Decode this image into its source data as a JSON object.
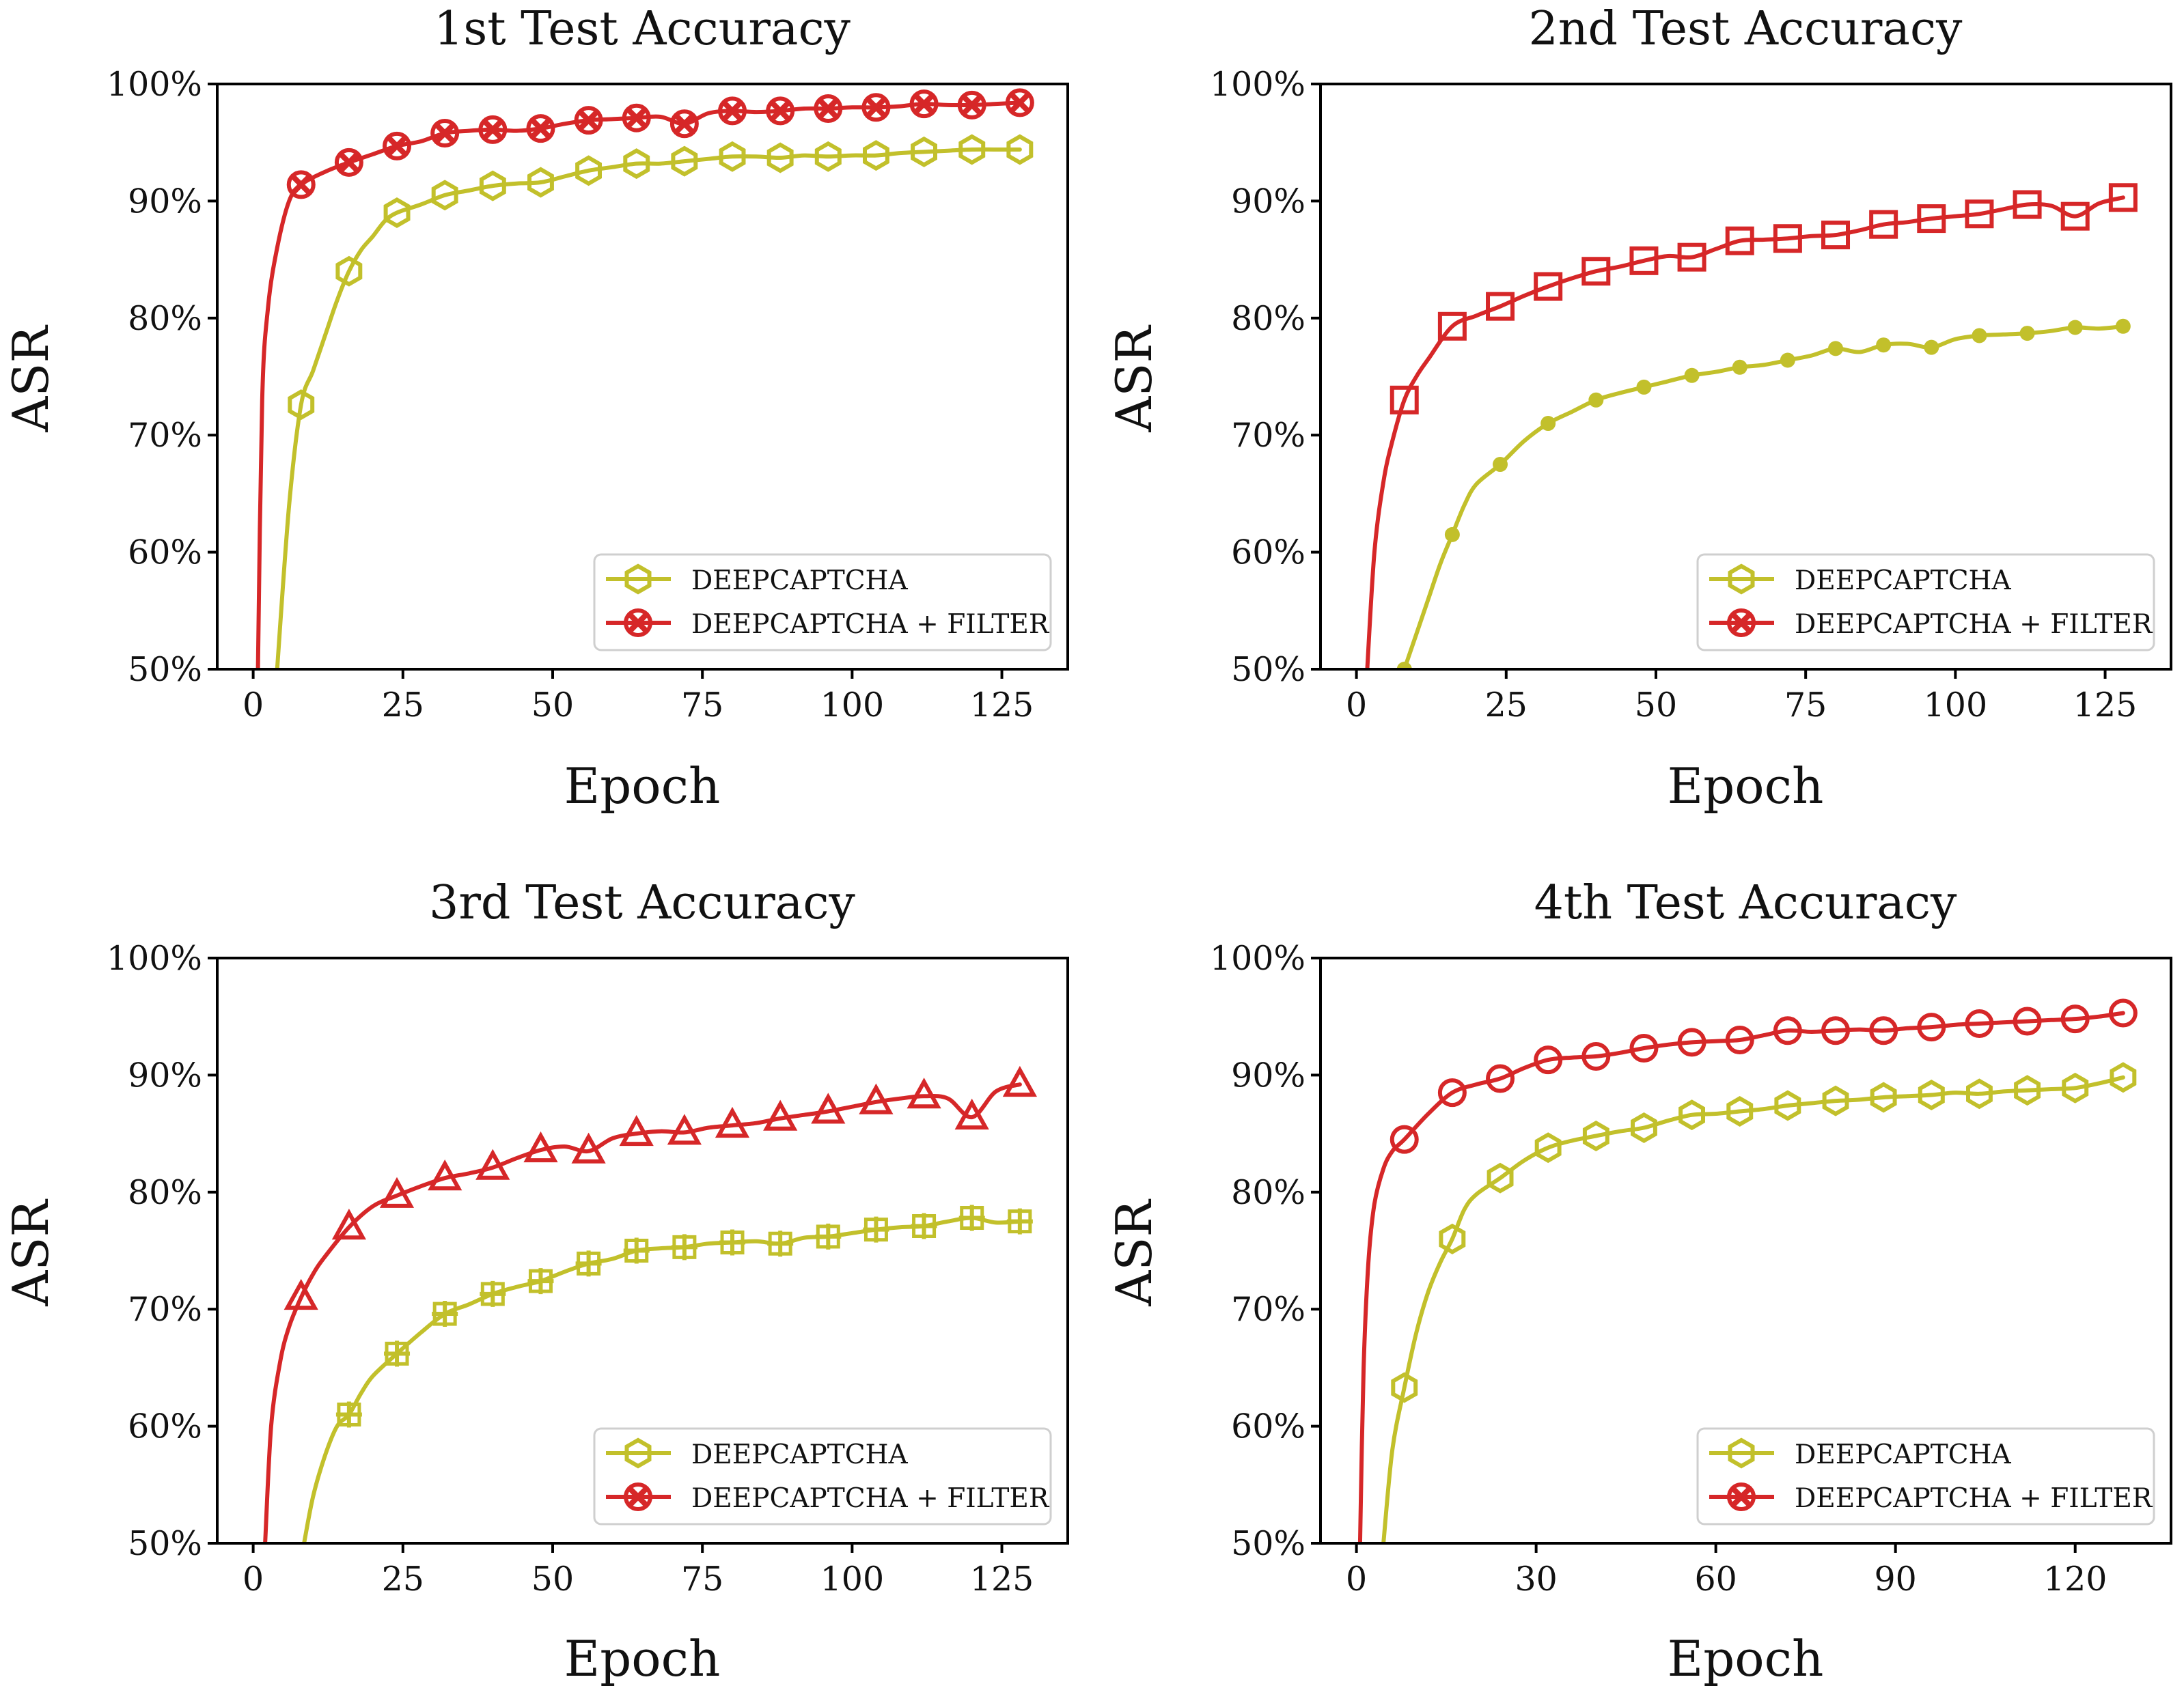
{
  "colors": {
    "baseline": "#c2c02b",
    "filter": "#d62728"
  },
  "chart_data": [
    {
      "type": "line",
      "title": "1st Test Accuracy",
      "xlabel": "Epoch",
      "ylabel": "ASR",
      "xlim": [
        -6,
        136
      ],
      "ylim": [
        50,
        100
      ],
      "xticks": [
        0,
        25,
        50,
        75,
        100,
        125
      ],
      "yticks": [
        50,
        60,
        70,
        80,
        90,
        100
      ],
      "ytick_labels": [
        "50%",
        "60%",
        "70%",
        "80%",
        "90%",
        "100%"
      ],
      "legend_position": "lower-right",
      "series": [
        {
          "name": "DEEPCAPTCHA",
          "color": "baseline",
          "marker": "hexagon",
          "x": [
            4,
            6,
            8,
            10,
            12,
            14,
            16,
            18,
            20,
            22,
            24,
            28,
            32,
            36,
            40,
            44,
            48,
            52,
            56,
            60,
            64,
            68,
            72,
            76,
            80,
            84,
            88,
            92,
            96,
            100,
            104,
            108,
            112,
            116,
            120,
            124,
            128
          ],
          "y": [
            50,
            64,
            72.6,
            75.5,
            78.5,
            81.5,
            84,
            85.8,
            87,
            88.3,
            89,
            89.7,
            90.5,
            90.9,
            91.3,
            91.5,
            91.6,
            92.1,
            92.6,
            92.9,
            93.2,
            93.2,
            93.4,
            93.6,
            93.8,
            93.8,
            93.7,
            93.9,
            93.8,
            93.9,
            93.9,
            94.1,
            94.2,
            94.3,
            94.4,
            94.4,
            94.4
          ],
          "marker_x": [
            8,
            16,
            24,
            32,
            40,
            48,
            56,
            64,
            72,
            80,
            88,
            96,
            104,
            112,
            120,
            128
          ]
        },
        {
          "name": "DEEPCAPTCHA + FILTER",
          "color": "filter",
          "marker": "x-circle",
          "x": [
            0.8,
            1.5,
            2.5,
            4,
            6,
            8,
            12,
            16,
            20,
            24,
            28,
            32,
            36,
            40,
            44,
            48,
            52,
            56,
            60,
            64,
            68,
            72,
            76,
            80,
            84,
            88,
            92,
            96,
            100,
            104,
            108,
            112,
            116,
            120,
            124,
            128
          ],
          "y": [
            50,
            73,
            81,
            86,
            90,
            91.4,
            92.5,
            93.3,
            94,
            94.7,
            95.1,
            95.8,
            96,
            96.1,
            96,
            96.2,
            96.6,
            96.9,
            97,
            97.1,
            97.2,
            96.6,
            97.5,
            97.7,
            97.6,
            97.7,
            97.9,
            97.9,
            98,
            98,
            98.1,
            98.3,
            98.2,
            98.2,
            98.3,
            98.4
          ],
          "marker_x": [
            8,
            16,
            24,
            32,
            40,
            48,
            56,
            64,
            72,
            80,
            88,
            96,
            104,
            112,
            120,
            128
          ]
        }
      ]
    },
    {
      "type": "line",
      "title": "2nd Test Accuracy",
      "xlabel": "Epoch",
      "ylabel": "ASR",
      "xlim": [
        -6,
        136
      ],
      "ylim": [
        50,
        100
      ],
      "xticks": [
        0,
        25,
        50,
        75,
        100,
        125
      ],
      "yticks": [
        50,
        60,
        70,
        80,
        90,
        100
      ],
      "ytick_labels": [
        "50%",
        "60%",
        "70%",
        "80%",
        "90%",
        "100%"
      ],
      "legend_position": "lower-right",
      "series": [
        {
          "name": "DEEPCAPTCHA",
          "color": "baseline",
          "marker": "dot",
          "x": [
            8,
            10,
            12,
            14,
            16,
            18,
            20,
            24,
            28,
            32,
            36,
            40,
            44,
            48,
            52,
            56,
            60,
            64,
            68,
            72,
            76,
            80,
            84,
            88,
            92,
            96,
            100,
            104,
            108,
            112,
            116,
            120,
            124,
            128
          ],
          "y": [
            50,
            53,
            56,
            59,
            61.5,
            64,
            65.8,
            67.5,
            69.5,
            71,
            72,
            73,
            73.6,
            74.1,
            74.6,
            75.1,
            75.4,
            75.8,
            76,
            76.4,
            76.8,
            77.4,
            77.1,
            77.7,
            77.8,
            77.5,
            78.2,
            78.5,
            78.6,
            78.7,
            78.9,
            79.2,
            79.1,
            79.3
          ],
          "marker_x": [
            8,
            16,
            24,
            32,
            40,
            48,
            56,
            64,
            72,
            80,
            88,
            96,
            104,
            112,
            120,
            128
          ]
        },
        {
          "name": "DEEPCAPTCHA + FILTER",
          "color": "filter",
          "marker": "square",
          "x": [
            1.8,
            3,
            4.5,
            6,
            8,
            10,
            12,
            16,
            20,
            24,
            28,
            32,
            36,
            40,
            44,
            48,
            52,
            56,
            60,
            64,
            68,
            72,
            76,
            80,
            84,
            88,
            92,
            96,
            100,
            104,
            108,
            112,
            116,
            120,
            124,
            128
          ],
          "y": [
            50,
            60,
            66,
            69.5,
            73,
            75,
            76.5,
            79.3,
            80.2,
            81,
            81.9,
            82.7,
            83.4,
            84,
            84.4,
            84.9,
            85.3,
            85.2,
            85.9,
            86.6,
            86.7,
            86.8,
            87,
            87.1,
            87.5,
            88,
            88.2,
            88.5,
            88.7,
            88.9,
            89.3,
            89.7,
            89.6,
            88.7,
            89.8,
            90.3
          ],
          "marker_x": [
            8,
            16,
            24,
            32,
            40,
            48,
            56,
            64,
            72,
            80,
            88,
            96,
            104,
            112,
            120,
            128
          ]
        }
      ]
    },
    {
      "type": "line",
      "title": "3rd Test Accuracy",
      "xlabel": "Epoch",
      "ylabel": "ASR",
      "xlim": [
        -6,
        136
      ],
      "ylim": [
        50,
        100
      ],
      "xticks": [
        0,
        25,
        50,
        75,
        100,
        125
      ],
      "yticks": [
        50,
        60,
        70,
        80,
        90,
        100
      ],
      "ytick_labels": [
        "50%",
        "60%",
        "70%",
        "80%",
        "90%",
        "100%"
      ],
      "legend_position": "lower-right",
      "series": [
        {
          "name": "DEEPCAPTCHA",
          "color": "baseline",
          "marker": "plus-square",
          "x": [
            8.5,
            10,
            12,
            14,
            16,
            18,
            20,
            24,
            28,
            32,
            36,
            40,
            44,
            48,
            52,
            56,
            60,
            64,
            68,
            72,
            76,
            80,
            84,
            88,
            92,
            96,
            100,
            104,
            108,
            112,
            116,
            120,
            124,
            128
          ],
          "y": [
            50,
            54,
            57.5,
            60,
            61,
            62.8,
            64.3,
            66.2,
            68,
            69.6,
            70.4,
            71.3,
            71.9,
            72.4,
            73.2,
            73.9,
            74.3,
            75,
            75.2,
            75.3,
            75.6,
            75.7,
            75.8,
            75.6,
            76.1,
            76.2,
            76.5,
            76.8,
            77,
            77.1,
            77.5,
            77.8,
            77.4,
            77.5
          ],
          "marker_x": [
            16,
            24,
            32,
            40,
            48,
            56,
            64,
            72,
            80,
            88,
            96,
            104,
            112,
            120,
            128
          ]
        },
        {
          "name": "DEEPCAPTCHA + FILTER",
          "color": "filter",
          "marker": "triangle",
          "x": [
            2,
            3,
            4.5,
            6,
            8,
            10,
            12,
            16,
            20,
            24,
            28,
            32,
            36,
            40,
            44,
            48,
            52,
            56,
            60,
            64,
            68,
            72,
            76,
            80,
            84,
            88,
            92,
            96,
            100,
            104,
            108,
            112,
            116,
            120,
            124,
            128
          ],
          "y": [
            50,
            60,
            65.5,
            68.5,
            71,
            73,
            74.5,
            77,
            78.8,
            79.7,
            80.5,
            81.2,
            81.6,
            82.1,
            82.9,
            83.6,
            83.9,
            83.5,
            84.6,
            85,
            85.2,
            85.1,
            85.5,
            85.7,
            85.9,
            86.3,
            86.6,
            86.9,
            87.3,
            87.7,
            88,
            88.2,
            88,
            86.4,
            88.6,
            89.2
          ],
          "marker_x": [
            8,
            16,
            24,
            32,
            40,
            48,
            56,
            64,
            72,
            80,
            88,
            96,
            104,
            112,
            120,
            128
          ]
        }
      ]
    },
    {
      "type": "line",
      "title": "4th Test Accuracy",
      "xlabel": "Epoch",
      "ylabel": "ASR",
      "xlim": [
        -6,
        136
      ],
      "ylim": [
        50,
        100
      ],
      "xticks": [
        0,
        30,
        60,
        90,
        120
      ],
      "yticks": [
        50,
        60,
        70,
        80,
        90,
        100
      ],
      "ytick_labels": [
        "50%",
        "60%",
        "70%",
        "80%",
        "90%",
        "100%"
      ],
      "legend_position": "lower-right",
      "series": [
        {
          "name": "DEEPCAPTCHA",
          "color": "baseline",
          "marker": "hexagon",
          "x": [
            4.5,
            6,
            8,
            10,
            12,
            14,
            16,
            18,
            20,
            24,
            28,
            32,
            36,
            40,
            44,
            48,
            52,
            56,
            60,
            64,
            68,
            72,
            76,
            80,
            84,
            88,
            92,
            96,
            100,
            104,
            108,
            112,
            116,
            120,
            124,
            128
          ],
          "y": [
            50,
            58,
            63.3,
            68,
            71.5,
            74,
            76,
            78.5,
            79.8,
            81.2,
            82.7,
            83.8,
            84.4,
            84.8,
            85.2,
            85.5,
            86.1,
            86.6,
            86.7,
            86.9,
            87.1,
            87.4,
            87.6,
            87.8,
            87.9,
            88.1,
            88.2,
            88.3,
            88.5,
            88.4,
            88.6,
            88.7,
            88.8,
            88.9,
            89.3,
            89.8
          ],
          "marker_x": [
            8,
            16,
            24,
            32,
            40,
            48,
            56,
            64,
            72,
            80,
            88,
            96,
            104,
            112,
            120,
            128
          ]
        },
        {
          "name": "DEEPCAPTCHA + FILTER",
          "color": "filter",
          "marker": "circle",
          "x": [
            0.6,
            1.2,
            2,
            3,
            4.5,
            6,
            8,
            12,
            16,
            20,
            24,
            28,
            32,
            36,
            40,
            44,
            48,
            52,
            56,
            60,
            64,
            68,
            72,
            76,
            80,
            84,
            88,
            92,
            96,
            100,
            104,
            108,
            112,
            116,
            120,
            124,
            128
          ],
          "y": [
            50,
            65,
            74,
            79,
            82,
            83.5,
            84.5,
            86.7,
            88.5,
            89.2,
            89.7,
            90.6,
            91.3,
            91.5,
            91.6,
            91.9,
            92.3,
            92.6,
            92.8,
            92.9,
            93,
            93.4,
            93.8,
            93.7,
            93.8,
            93.9,
            93.8,
            94,
            94.1,
            94.3,
            94.4,
            94.5,
            94.6,
            94.7,
            94.8,
            95,
            95.3
          ],
          "marker_x": [
            8,
            16,
            24,
            32,
            40,
            48,
            56,
            64,
            72,
            80,
            88,
            96,
            104,
            112,
            120,
            128
          ]
        }
      ]
    }
  ]
}
